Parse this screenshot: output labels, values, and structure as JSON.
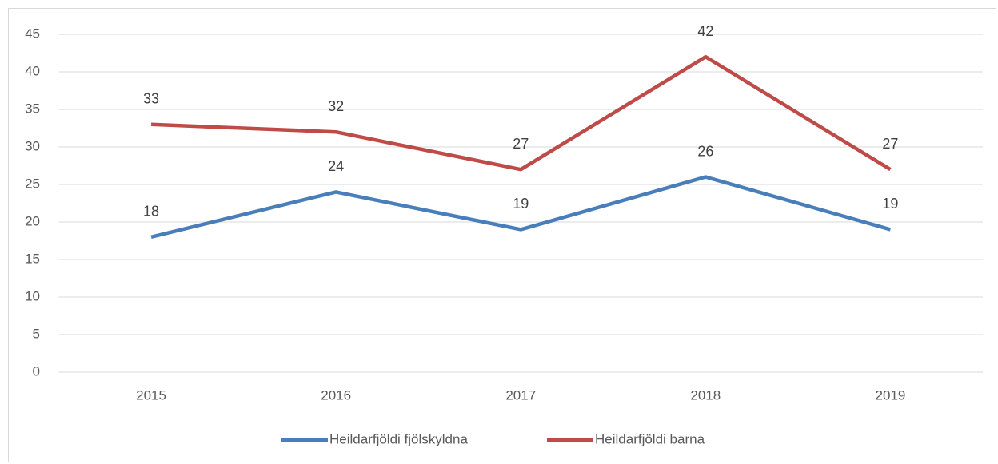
{
  "chart_data": {
    "type": "line",
    "categories": [
      "2015",
      "2016",
      "2017",
      "2018",
      "2019"
    ],
    "series": [
      {
        "name": "Heildarfjöldi fjölskyldna",
        "color": "#4a7ebb",
        "values": [
          18,
          24,
          19,
          26,
          19
        ]
      },
      {
        "name": "Heildarfjöldi barna",
        "color": "#be4b48",
        "values": [
          33,
          32,
          27,
          42,
          27
        ]
      }
    ],
    "ylim": [
      0,
      45
    ],
    "yticks": [
      0,
      5,
      10,
      15,
      20,
      25,
      30,
      35,
      40,
      45
    ],
    "grid": true,
    "legend": "bottom",
    "data_labels": true
  }
}
